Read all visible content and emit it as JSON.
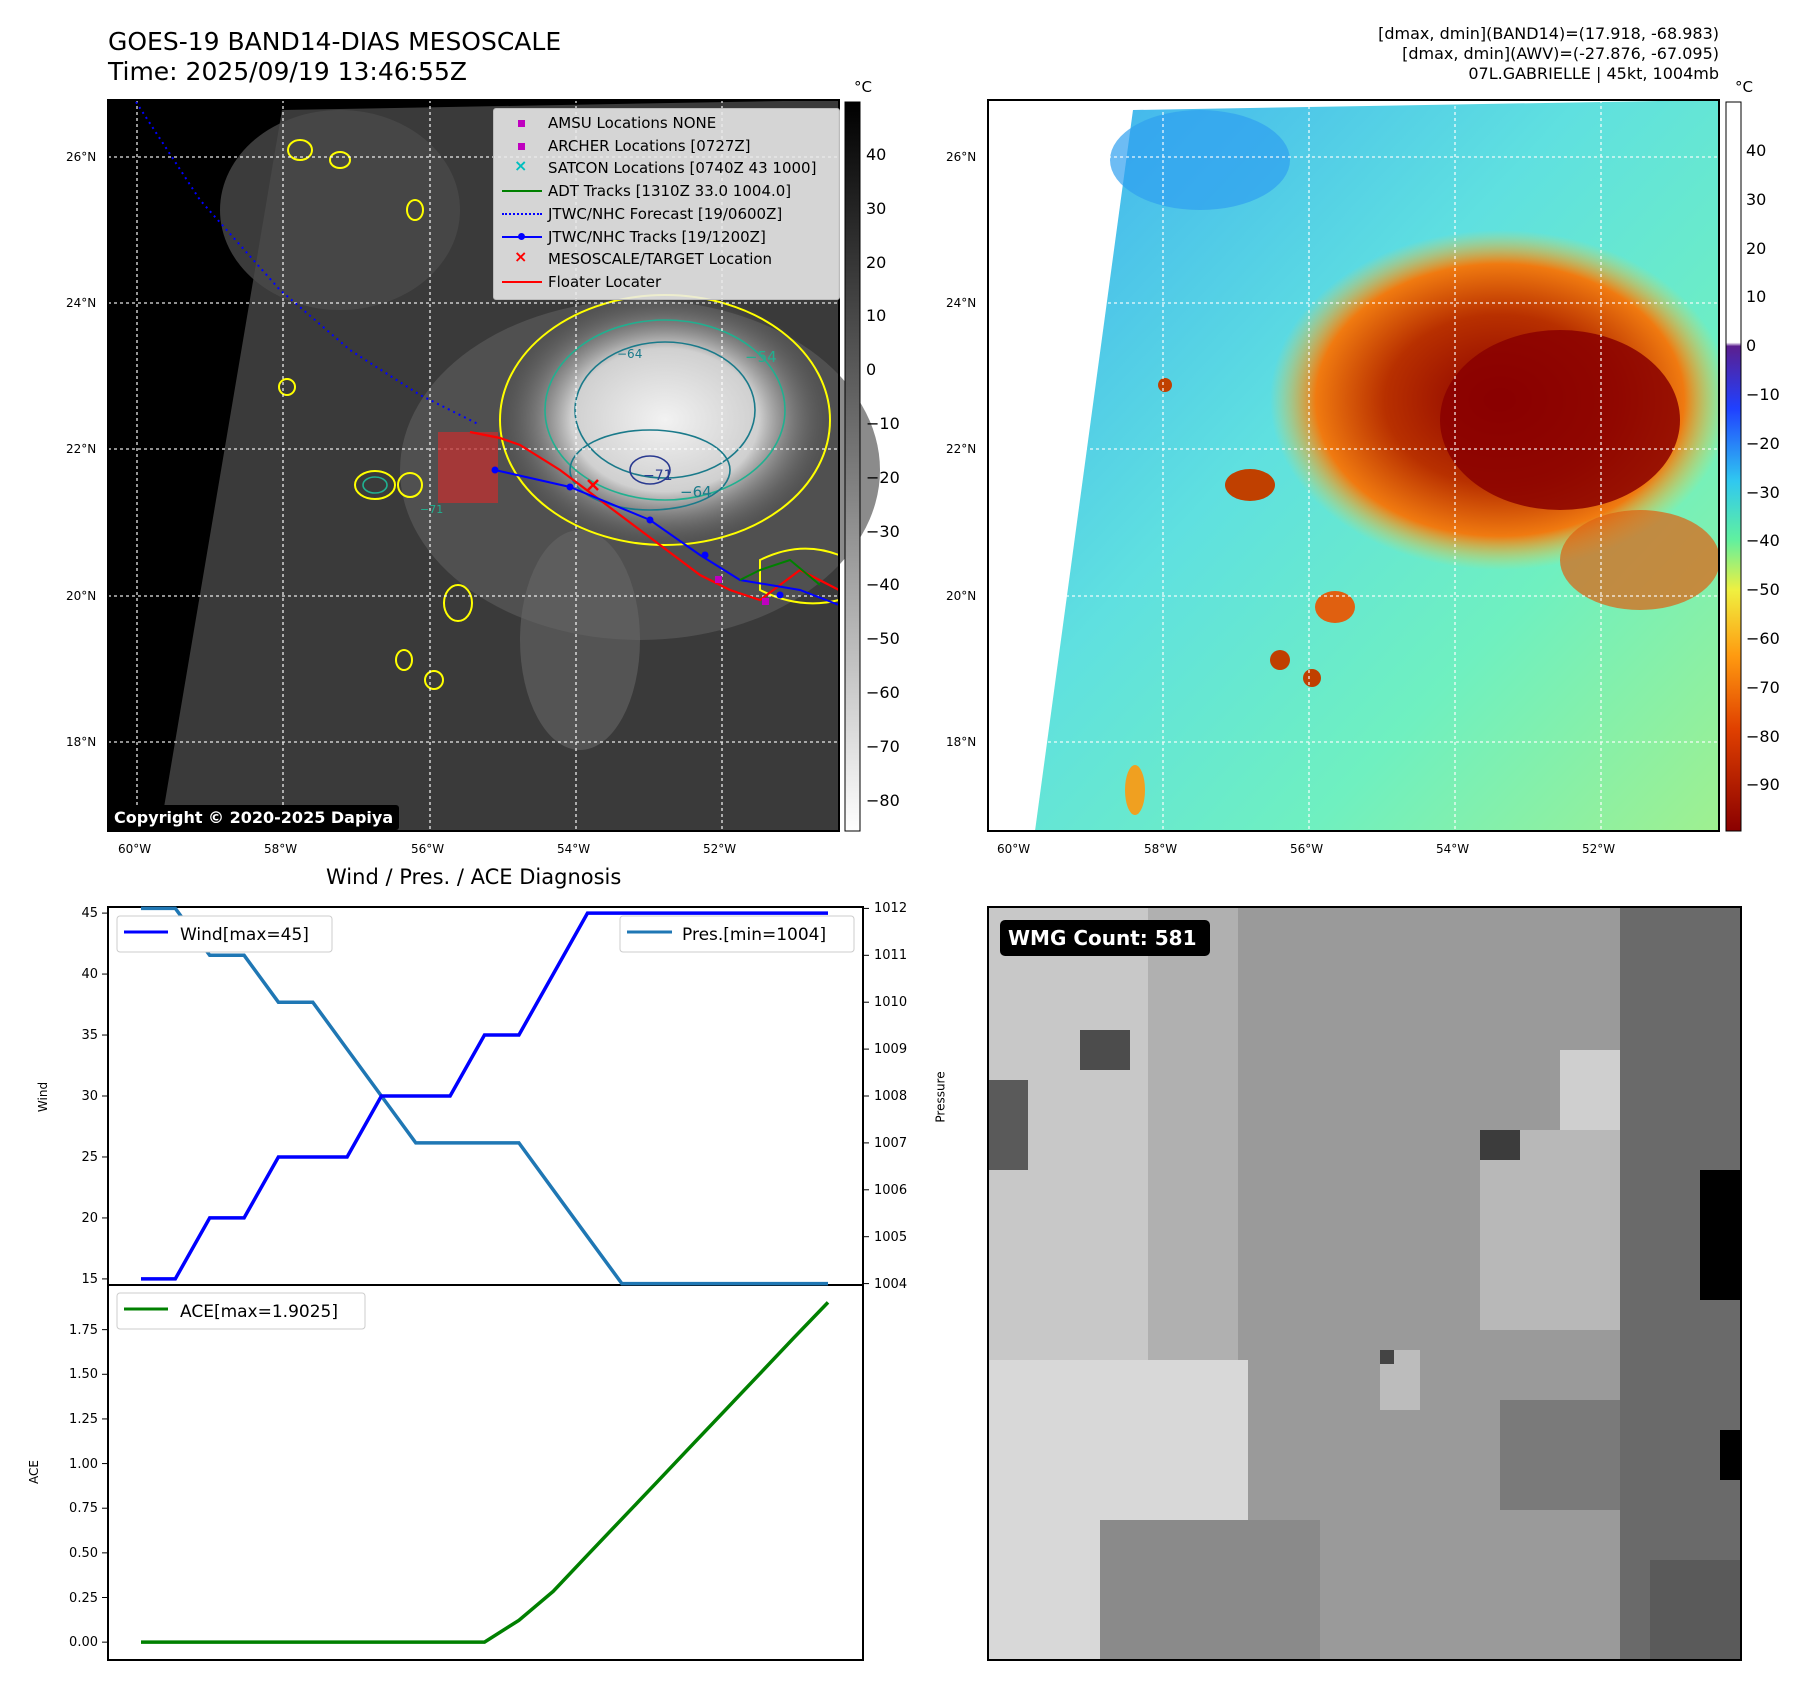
{
  "header": {
    "title": "GOES-19 BAND14-DIAS MESOSCALE",
    "time": "Time: 2025/09/19 13:46:55Z",
    "stats_line1": "[dmax, dmin](BAND14)=(17.918, -68.983)",
    "stats_line2": "[dmax, dmin](AWV)=(-27.876, -67.095)",
    "stats_line3": "07L.GABRIELLE | 45kt, 1004mb"
  },
  "copyright": "Copyright © 2020-2025 Dapiya",
  "map_axes": {
    "lat_labels": [
      "26°N",
      "24°N",
      "22°N",
      "20°N",
      "18°N"
    ],
    "lon_labels": [
      "60°W",
      "58°W",
      "56°W",
      "54°W",
      "52°W"
    ]
  },
  "ir_colorbar": {
    "unit": "°C",
    "ticks": [
      "40",
      "30",
      "20",
      "10",
      "0",
      "−10",
      "−20",
      "−30",
      "−40",
      "−50",
      "−60",
      "−70",
      "−80"
    ]
  },
  "awv_colorbar": {
    "unit": "°C",
    "ticks": [
      "40",
      "30",
      "20",
      "10",
      "0",
      "−10",
      "−20",
      "−30",
      "−40",
      "−50",
      "−60",
      "−70",
      "−80",
      "−90"
    ]
  },
  "contour_labels": [
    "−54",
    "−64",
    "−64",
    "−71",
    "−71"
  ],
  "legend": [
    {
      "label": "AMSU Locations NONE",
      "color": "#bf00bf"
    },
    {
      "label": "ARCHER Locations [0727Z]",
      "color": "#bf00bf"
    },
    {
      "label": "SATCON Locations [0740Z 43 1000]",
      "color": "#00bfbf"
    },
    {
      "label": "ADT Tracks [1310Z 33.0 1004.0]",
      "color": "#008000"
    },
    {
      "label": "JTWC/NHC Forecast [19/0600Z]",
      "color": "#0000ff"
    },
    {
      "label": "JTWC/NHC Tracks [19/1200Z]",
      "color": "#0000ff"
    },
    {
      "label": "MESOSCALE/TARGET Location",
      "color": "#ff0000"
    },
    {
      "label": "Floater Locater",
      "color": "#ff0000"
    }
  ],
  "diag": {
    "title": "Wind / Pres. / ACE Diagnosis",
    "wind_legend": "Wind[max=45]",
    "pres_legend": "Pres.[min=1004]",
    "ace_legend": "ACE[max=1.9025]",
    "ylabel_wind": "Wind",
    "ylabel_pres": "Pressure",
    "ylabel_ace": "ACE",
    "wind_ticks": [
      "45",
      "40",
      "35",
      "30",
      "25",
      "20",
      "15"
    ],
    "pres_ticks": [
      "1012",
      "1011",
      "1010",
      "1009",
      "1008",
      "1007",
      "1006",
      "1005",
      "1004"
    ],
    "ace_ticks": [
      "1.75",
      "1.50",
      "1.25",
      "1.00",
      "0.75",
      "0.50",
      "0.25",
      "0.00"
    ]
  },
  "wmg": {
    "label": "WMG Count: 581"
  },
  "chart_data": [
    {
      "type": "line",
      "title": "Wind / Pres. / ACE Diagnosis",
      "x": [
        0,
        1,
        2,
        3,
        4,
        5,
        6,
        7,
        8,
        9,
        10,
        11,
        12,
        13,
        14,
        15,
        16,
        17,
        18,
        19,
        20
      ],
      "series": [
        {
          "name": "Wind[max=45]",
          "axis": "left",
          "color": "#0000ff",
          "values": [
            15,
            15,
            20,
            20,
            25,
            25,
            25,
            30,
            30,
            30,
            35,
            35,
            40,
            45,
            45,
            45,
            45,
            45,
            45,
            45,
            45
          ]
        },
        {
          "name": "Pres.[min=1004]",
          "axis": "right",
          "color": "#1f77b4",
          "values": [
            1012,
            1012,
            1011,
            1011,
            1010,
            1010,
            1009,
            1008,
            1007,
            1007,
            1007,
            1007,
            1006,
            1005,
            1004,
            1004,
            1004,
            1004,
            1004,
            1004,
            1004
          ]
        }
      ],
      "ylabel": "Wind",
      "y2label": "Pressure",
      "ylim": [
        14.5,
        45.5
      ],
      "y2lim": [
        1003.97,
        1012.03
      ]
    },
    {
      "type": "line",
      "x": [
        0,
        1,
        2,
        3,
        4,
        5,
        6,
        7,
        8,
        9,
        10,
        11,
        12,
        13,
        14,
        15,
        16,
        17,
        18,
        19,
        20
      ],
      "series": [
        {
          "name": "ACE[max=1.9025]",
          "color": "#008000",
          "values": [
            0,
            0,
            0,
            0,
            0,
            0,
            0,
            0,
            0,
            0,
            0,
            0.1225,
            0.285,
            0.4875,
            0.69,
            0.8925,
            1.095,
            1.2975,
            1.5,
            1.7025,
            1.9025
          ]
        }
      ],
      "ylabel": "ACE",
      "ylim": [
        -0.1,
        2.0
      ]
    }
  ]
}
